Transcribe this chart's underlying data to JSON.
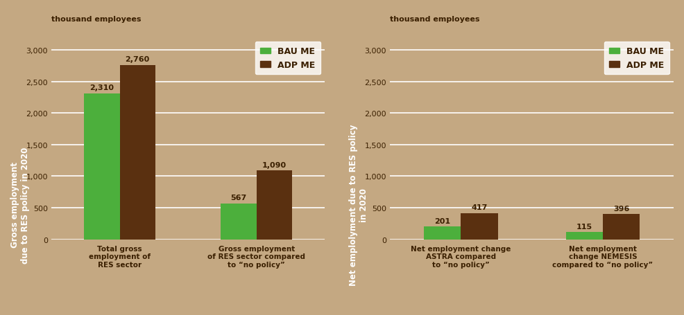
{
  "background_color": "#c4a882",
  "sidebar_color": "#8B5E2A",
  "plot_bg_color": "#c4a882",
  "grid_color": "#ffffff",
  "bar_color_green": "#4caf3c",
  "bar_color_brown": "#5a3010",
  "text_color_dark": "#3a1f00",
  "text_color_white": "#ffffff",
  "chart1": {
    "ylabel": "Gross employment\ndue to RES policy in 2020",
    "top_label": "thousand employees",
    "ylim": [
      0,
      3200
    ],
    "yticks": [
      0,
      500,
      1000,
      1500,
      2000,
      2500,
      3000
    ],
    "categories": [
      "Total gross\nemployment of\nRES sector",
      "Gross employment\nof RES sector compared\nto “no policy”"
    ],
    "bau_values": [
      2310,
      567
    ],
    "adp_values": [
      2760,
      1090
    ],
    "bar_labels_bau": [
      "2,310",
      "567"
    ],
    "bar_labels_adp": [
      "2,760",
      "1,090"
    ],
    "legend_labels": [
      "BAU ME",
      "ADP ME"
    ]
  },
  "chart2": {
    "ylabel": "Net emplolyment due to RES policy\nin 2020",
    "top_label": "thousand employees",
    "ylim": [
      0,
      3200
    ],
    "yticks": [
      0,
      500,
      1000,
      1500,
      2000,
      2500,
      3000
    ],
    "categories": [
      "Net employment change\nASTRA compared\nto “no policy”",
      "Net employment\nchange NEMESIS\ncompared to “no policy”"
    ],
    "bau_values": [
      201,
      115
    ],
    "adp_values": [
      417,
      396
    ],
    "bar_labels_bau": [
      "201",
      "115"
    ],
    "bar_labels_adp": [
      "417",
      "396"
    ],
    "legend_labels": [
      "BAU ME",
      "ADP ME"
    ]
  }
}
